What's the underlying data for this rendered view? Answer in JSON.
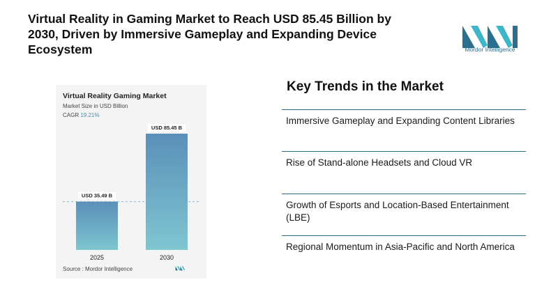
{
  "headline": "Virtual Reality in Gaming Market to Reach USD 85.45 Billion by 2030, Driven by Immersive Gameplay and Expanding Device Ecosystem",
  "logo": {
    "text": "Mordor Intelligence",
    "colors": [
      "#2a6f8e",
      "#3fb6c8"
    ]
  },
  "chart_card": {
    "title": "Virtual Reality Gaming Market",
    "subtitle": "Market Size in USD Billion",
    "cagr_label": "CAGR",
    "cagr_value": "19.21%",
    "source": "Source : Mordor Intelligence"
  },
  "chart_data": {
    "type": "bar",
    "title": "Virtual Reality Gaming Market",
    "ylabel": "Market Size in USD Billion",
    "categories": [
      "2025",
      "2030"
    ],
    "values": [
      35.49,
      85.45
    ],
    "data_labels": [
      "USD 35.49 B",
      "USD 85.45 B"
    ],
    "ylim": [
      0,
      85.45
    ],
    "grid": false,
    "reference_line_at": 35.49,
    "bar_gradient": [
      "#5b8fb9",
      "#7fc6d1"
    ]
  },
  "trends": {
    "heading": "Key Trends in the Market",
    "items": [
      "Immersive Gameplay and Expanding Content Libraries",
      "Rise of Stand-alone Headsets and Cloud VR",
      "Growth of Esports and Location-Based Entertainment (LBE)",
      "Regional Momentum in Asia-Pacific and North America"
    ]
  }
}
